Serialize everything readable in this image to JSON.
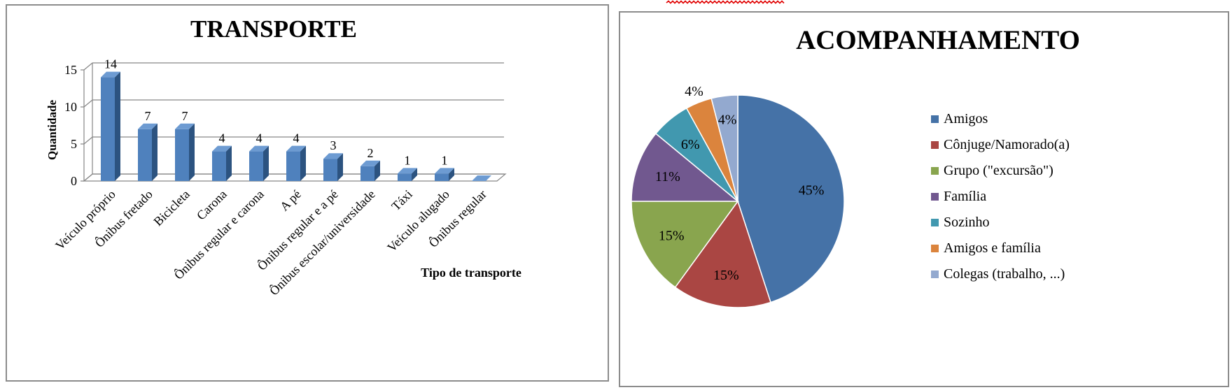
{
  "colors": {
    "bar_face": "#4f81bd",
    "bar_side": "#2c5380",
    "bar_top": "#6d9bd2",
    "grid": "#868686",
    "spell_underline": "#e00000"
  },
  "chart_data": [
    {
      "type": "bar",
      "title": "TRANSPORTE",
      "xlabel": "Tipo de transporte",
      "ylabel": "Quantidade",
      "ylim": [
        0,
        15
      ],
      "yticks": [
        "0",
        "5",
        "10",
        "15"
      ],
      "categories": [
        "Veículo próprio",
        "Ônibus fretado",
        "Bicicleta",
        "Carona",
        "Ônibus regular e carona",
        "A pé",
        "Ônibus regular e a pé",
        "Ônibus escolar/universidade",
        "Táxi",
        "Veículo alugado",
        "Ônibus regular"
      ],
      "values": [
        14,
        7,
        7,
        4,
        4,
        4,
        3,
        2,
        1,
        1,
        0
      ],
      "data_labels": [
        "14",
        "7",
        "7",
        "4",
        "4",
        "4",
        "3",
        "2",
        "1",
        "1",
        ""
      ],
      "grid": true,
      "style": "3d-column"
    },
    {
      "type": "pie",
      "title": "ACOMPANHAMENTO",
      "legend_position": "right",
      "slices": [
        {
          "label": "Amigos",
          "value": 45,
          "pct": "45%",
          "color": "#4572a7"
        },
        {
          "label": "Cônjuge/Namorado(a)",
          "value": 15,
          "pct": "15%",
          "color": "#aa4643"
        },
        {
          "label": "Grupo (\"excursão\")",
          "value": 15,
          "pct": "15%",
          "color": "#89a54e"
        },
        {
          "label": "Família",
          "value": 11,
          "pct": "11%",
          "color": "#71588f"
        },
        {
          "label": "Sozinho",
          "value": 6,
          "pct": "6%",
          "color": "#4198af"
        },
        {
          "label": "Amigos e família",
          "value": 4,
          "pct": "4%",
          "color": "#db843d"
        },
        {
          "label": "Colegas (trabalho, ...)",
          "value": 4,
          "pct": "4%",
          "color": "#93a9cf"
        }
      ]
    }
  ]
}
